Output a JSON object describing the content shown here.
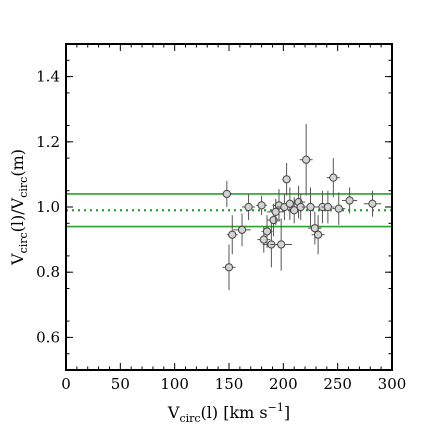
{
  "chart_data": {
    "type": "scatter",
    "title": "",
    "xlabel": {
      "main": "V",
      "sub": "circ",
      "rest": "(l)   [km s",
      "sup": "−1",
      "end": "]"
    },
    "ylabel": {
      "p1": "V",
      "s1": "circ",
      "p2": "(l)/V",
      "s2": "circ",
      "p3": "(m)"
    },
    "xlim": [
      0,
      300
    ],
    "ylim": [
      0.5,
      1.5
    ],
    "xticks": [
      0,
      50,
      100,
      150,
      200,
      250,
      300
    ],
    "yticks": [
      0.6,
      0.8,
      1.0,
      1.2,
      1.4
    ],
    "ytick_labels": [
      "0.6",
      "0.8",
      "1.0",
      "1.2",
      "1.4"
    ],
    "grid": false,
    "reference_lines": [
      {
        "y": 1.04,
        "style": "solid",
        "color": "#2ca02c"
      },
      {
        "y": 0.99,
        "style": "dotted",
        "color": "#2ca02c"
      },
      {
        "y": 0.94,
        "style": "solid",
        "color": "#2ca02c"
      }
    ],
    "marker_color": "#d3d3d3",
    "points": [
      {
        "x": 148,
        "y": 1.04,
        "xerr": 5,
        "yerr": 0.04
      },
      {
        "x": 150,
        "y": 0.815,
        "xerr": 6,
        "yerr": 0.07
      },
      {
        "x": 153,
        "y": 0.915,
        "xerr": 5,
        "yerr": 0.06
      },
      {
        "x": 162,
        "y": 0.93,
        "xerr": 8,
        "yerr": 0.05
      },
      {
        "x": 168,
        "y": 1.0,
        "xerr": 6,
        "yerr": 0.04
      },
      {
        "x": 180,
        "y": 1.005,
        "xerr": 5,
        "yerr": 0.03
      },
      {
        "x": 182,
        "y": 0.9,
        "xerr": 6,
        "yerr": 0.04
      },
      {
        "x": 185,
        "y": 0.925,
        "xerr": 5,
        "yerr": 0.05
      },
      {
        "x": 189,
        "y": 0.885,
        "xerr": 8,
        "yerr": 0.07
      },
      {
        "x": 191,
        "y": 0.96,
        "xerr": 6,
        "yerr": 0.05
      },
      {
        "x": 193,
        "y": 0.985,
        "xerr": 8,
        "yerr": 0.04
      },
      {
        "x": 196,
        "y": 1.005,
        "xerr": 6,
        "yerr": 0.05
      },
      {
        "x": 198,
        "y": 0.885,
        "xerr": 10,
        "yerr": 0.08
      },
      {
        "x": 201,
        "y": 1.0,
        "xerr": 7,
        "yerr": 0.04
      },
      {
        "x": 203,
        "y": 1.085,
        "xerr": 4,
        "yerr": 0.05
      },
      {
        "x": 206,
        "y": 1.01,
        "xerr": 8,
        "yerr": 0.05
      },
      {
        "x": 210,
        "y": 0.99,
        "xerr": 6,
        "yerr": 0.04
      },
      {
        "x": 214,
        "y": 1.015,
        "xerr": 6,
        "yerr": 0.05
      },
      {
        "x": 216,
        "y": 1.0,
        "xerr": 5,
        "yerr": 0.04
      },
      {
        "x": 221,
        "y": 1.145,
        "xerr": 6,
        "yerr": 0.11
      },
      {
        "x": 225,
        "y": 1.0,
        "xerr": 8,
        "yerr": 0.06
      },
      {
        "x": 229,
        "y": 0.935,
        "xerr": 6,
        "yerr": 0.05
      },
      {
        "x": 232,
        "y": 0.915,
        "xerr": 6,
        "yerr": 0.06
      },
      {
        "x": 236,
        "y": 1.0,
        "xerr": 7,
        "yerr": 0.05
      },
      {
        "x": 241,
        "y": 1.0,
        "xerr": 6,
        "yerr": 0.05
      },
      {
        "x": 246,
        "y": 1.09,
        "xerr": 6,
        "yerr": 0.06
      },
      {
        "x": 251,
        "y": 0.995,
        "xerr": 6,
        "yerr": 0.05
      },
      {
        "x": 261,
        "y": 1.02,
        "xerr": 7,
        "yerr": 0.04
      },
      {
        "x": 282,
        "y": 1.01,
        "xerr": 8,
        "yerr": 0.04
      }
    ]
  }
}
